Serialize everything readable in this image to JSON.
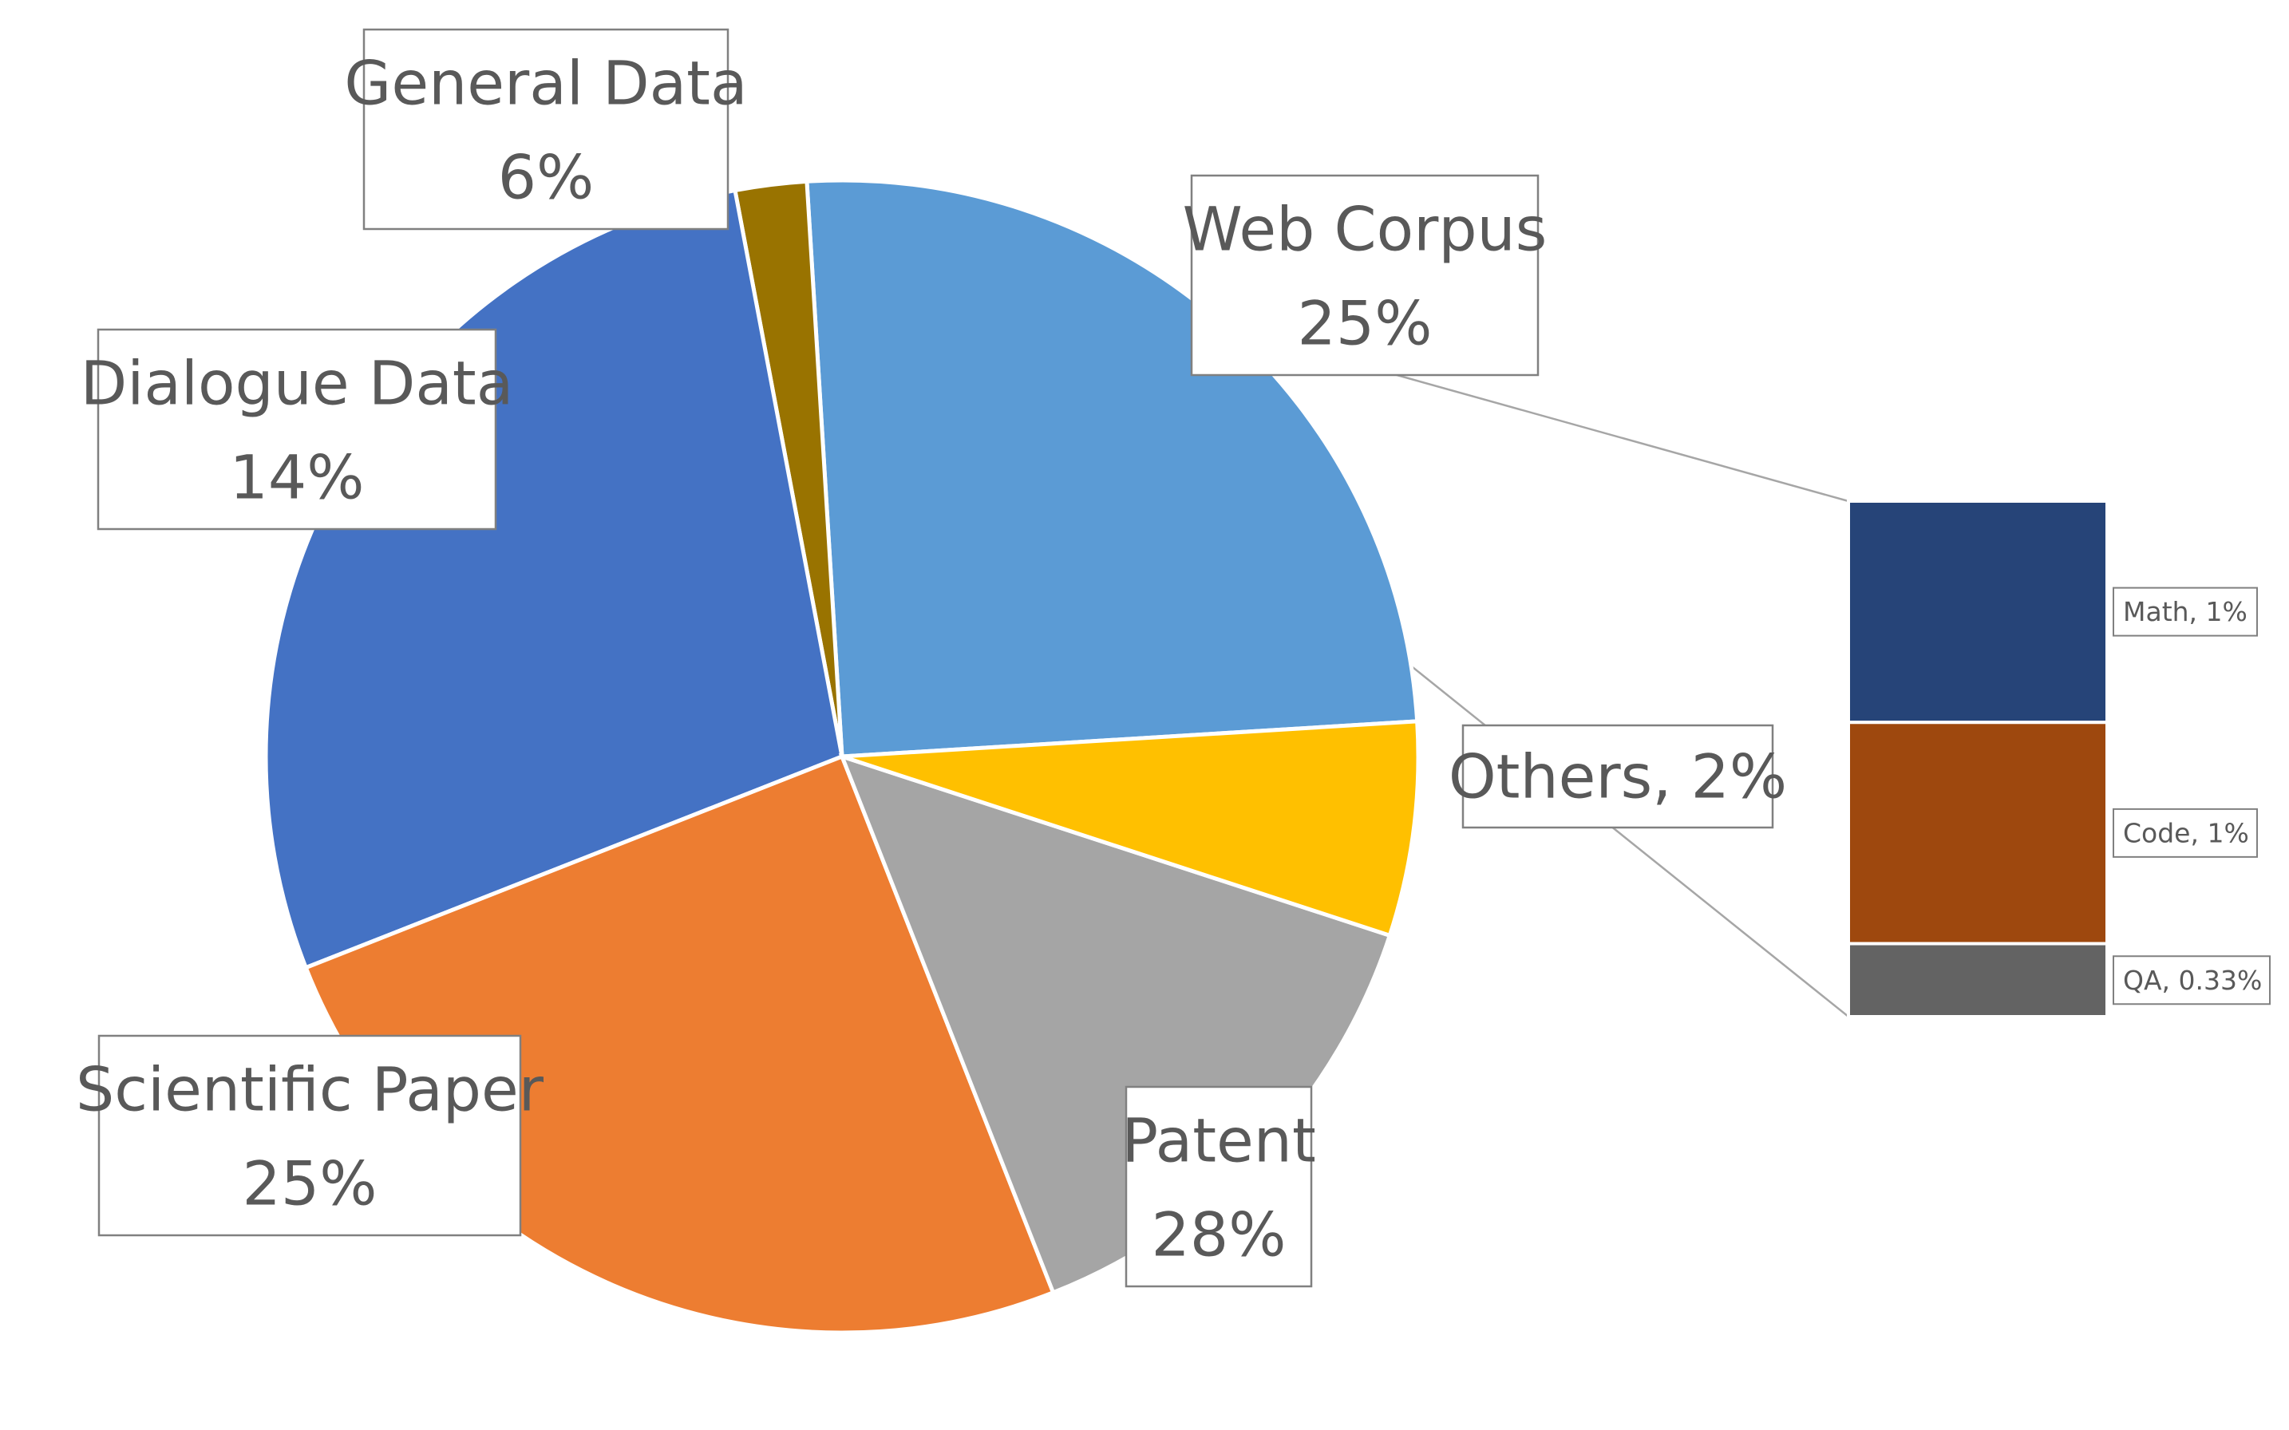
{
  "chart_data": {
    "type": "pie",
    "subtype": "bar-of-pie",
    "slices": [
      {
        "name": "Web Corpus",
        "value": 25,
        "label": "Web Corpus",
        "percent_label": "25%",
        "color": "#5B9BD5"
      },
      {
        "name": "Others",
        "value": 2,
        "label": "Others, 2%",
        "color": "#997300"
      },
      {
        "name": "Patent",
        "value": 28,
        "label": "Patent",
        "percent_label": "28%",
        "color": "#4472C4"
      },
      {
        "name": "Scientific Paper",
        "value": 25,
        "label": "Scientific Paper",
        "percent_label": "25%",
        "color": "#ED7D31"
      },
      {
        "name": "Dialogue Data",
        "value": 14,
        "label": "Dialogue Data",
        "percent_label": "14%",
        "color": "#A5A5A5"
      },
      {
        "name": "General Data",
        "value": 6,
        "label": "General Data",
        "percent_label": "6%",
        "color": "#FFC000"
      }
    ],
    "others_breakdown": [
      {
        "name": "Math",
        "value": 1,
        "label": "Math, 1%",
        "color": "#264478"
      },
      {
        "name": "Code",
        "value": 1,
        "label": "Code, 1%",
        "color": "#9E480E"
      },
      {
        "name": "QA",
        "value": 0.33,
        "label": "QA,  0.33%",
        "color": "#636363"
      }
    ],
    "legend": "none"
  }
}
